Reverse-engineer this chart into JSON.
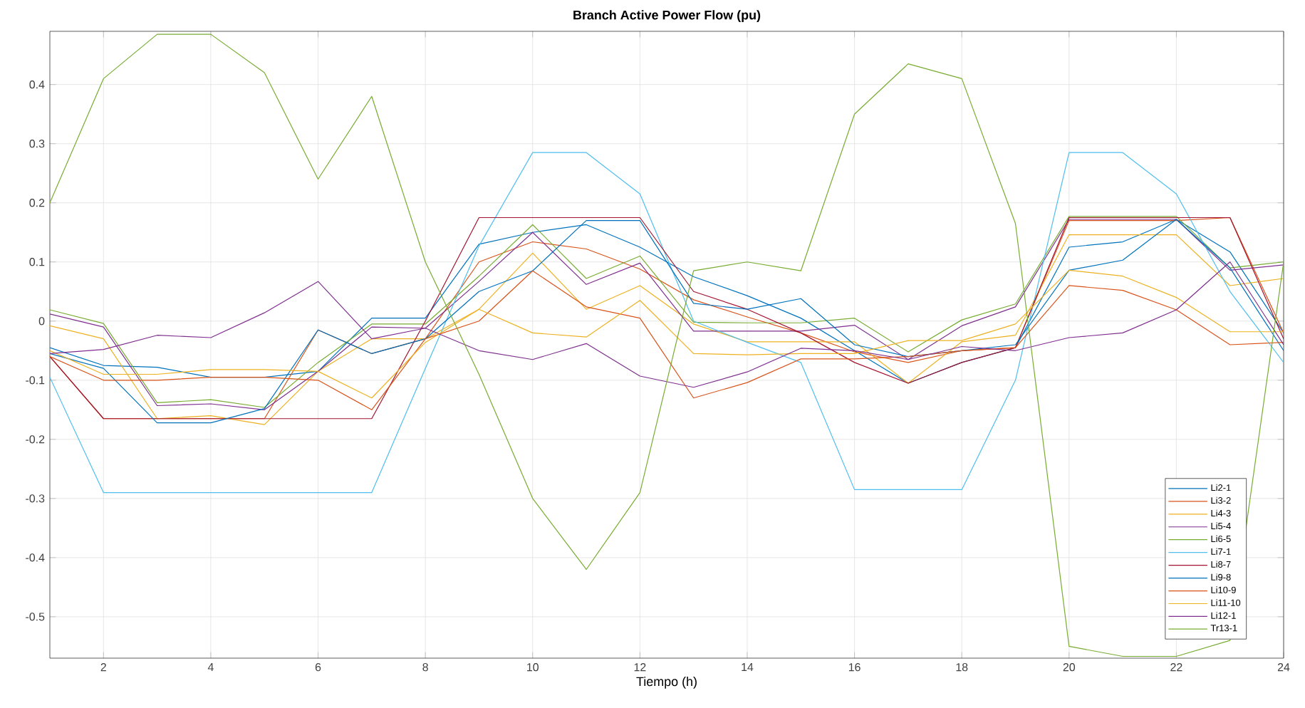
{
  "chart_data": {
    "type": "line",
    "title": "Branch Active Power Flow (pu)",
    "xlabel": "Tiempo (h)",
    "x": [
      1,
      2,
      3,
      4,
      5,
      6,
      7,
      8,
      9,
      10,
      11,
      12,
      13,
      14,
      15,
      16,
      17,
      18,
      19,
      20,
      21,
      22,
      23,
      24
    ],
    "xlim": [
      1,
      24
    ],
    "xticks": [
      2,
      4,
      6,
      8,
      10,
      12,
      14,
      16,
      18,
      20,
      22,
      24
    ],
    "ylim": [
      -0.57,
      0.49
    ],
    "yticks": [
      -0.5,
      -0.4,
      -0.3,
      -0.2,
      -0.1,
      0,
      0.1,
      0.2,
      0.3,
      0.4
    ],
    "grid": true,
    "legend": "bottom right",
    "marker": "none",
    "line_style": "solid",
    "series": [
      {
        "name": "Li2-1",
        "color": "#0072bd",
        "values": [
          -0.045,
          -0.075,
          -0.078,
          -0.095,
          -0.095,
          -0.085,
          0.005,
          0.005,
          0.13,
          0.15,
          0.163,
          0.125,
          0.075,
          0.043,
          0.005,
          -0.05,
          -0.105,
          -0.07,
          -0.045,
          0.125,
          0.134,
          0.172,
          0.117,
          -0.02
        ]
      },
      {
        "name": "Li3-2",
        "color": "#d95319",
        "values": [
          -0.06,
          -0.165,
          -0.165,
          -0.165,
          -0.165,
          -0.015,
          -0.055,
          -0.03,
          0.1,
          0.134,
          0.122,
          0.088,
          0.036,
          0.007,
          -0.02,
          -0.052,
          -0.07,
          -0.05,
          -0.045,
          0.17,
          0.17,
          0.17,
          0.175,
          -0.02
        ]
      },
      {
        "name": "Li4-3",
        "color": "#edb120",
        "values": [
          -0.008,
          -0.03,
          -0.165,
          -0.16,
          -0.175,
          -0.085,
          -0.03,
          -0.03,
          0.02,
          0.115,
          0.02,
          0.06,
          -0.005,
          -0.035,
          -0.035,
          -0.035,
          -0.105,
          -0.035,
          -0.024,
          0.146,
          0.146,
          0.146,
          0.06,
          0.072
        ]
      },
      {
        "name": "Li5-4",
        "color": "#7e2f8e",
        "values": [
          0.012,
          -0.01,
          -0.143,
          -0.14,
          -0.15,
          -0.085,
          -0.01,
          -0.012,
          0.067,
          0.15,
          0.062,
          0.098,
          -0.017,
          -0.017,
          -0.017,
          -0.007,
          -0.065,
          -0.008,
          0.024,
          0.172,
          0.172,
          0.172,
          0.086,
          0.095
        ]
      },
      {
        "name": "Li6-5",
        "color": "#77ac30",
        "values": [
          0.019,
          -0.004,
          -0.138,
          -0.133,
          -0.146,
          -0.07,
          -0.005,
          -0.005,
          0.076,
          0.163,
          0.072,
          0.11,
          -0.002,
          -0.003,
          -0.003,
          0.005,
          -0.052,
          0.002,
          0.029,
          0.177,
          0.177,
          0.177,
          0.09,
          0.1
        ]
      },
      {
        "name": "Li7-1",
        "color": "#4dbeee",
        "values": [
          -0.095,
          -0.29,
          -0.29,
          -0.29,
          -0.29,
          -0.29,
          -0.29,
          -0.08,
          0.127,
          0.285,
          0.285,
          0.215,
          0.0,
          -0.036,
          -0.07,
          -0.285,
          -0.285,
          -0.285,
          -0.1,
          0.285,
          0.285,
          0.215,
          0.05,
          -0.07
        ]
      },
      {
        "name": "Li8-7",
        "color": "#a2142f",
        "values": [
          -0.06,
          -0.165,
          -0.165,
          -0.165,
          -0.165,
          -0.165,
          -0.165,
          0.0,
          0.175,
          0.175,
          0.175,
          0.175,
          0.05,
          0.02,
          -0.02,
          -0.07,
          -0.105,
          -0.07,
          -0.045,
          0.175,
          0.175,
          0.175,
          0.175,
          -0.03
        ]
      },
      {
        "name": "Li9-8",
        "color": "#0072bd",
        "values": [
          -0.055,
          -0.08,
          -0.172,
          -0.172,
          -0.148,
          -0.015,
          -0.055,
          -0.03,
          0.05,
          0.085,
          0.17,
          0.17,
          0.03,
          0.02,
          0.038,
          -0.04,
          -0.06,
          -0.05,
          -0.04,
          0.086,
          0.103,
          0.172,
          0.09,
          -0.05
        ]
      },
      {
        "name": "Li10-9",
        "color": "#d95319",
        "values": [
          -0.06,
          -0.1,
          -0.1,
          -0.095,
          -0.095,
          -0.1,
          -0.15,
          -0.03,
          0.0,
          0.085,
          0.024,
          0.005,
          -0.13,
          -0.104,
          -0.064,
          -0.064,
          -0.06,
          -0.05,
          -0.045,
          0.06,
          0.052,
          0.019,
          -0.04,
          -0.036
        ]
      },
      {
        "name": "Li11-10",
        "color": "#edb120",
        "values": [
          -0.05,
          -0.09,
          -0.09,
          -0.082,
          -0.082,
          -0.085,
          -0.13,
          -0.036,
          0.02,
          -0.02,
          -0.027,
          0.035,
          -0.055,
          -0.057,
          -0.055,
          -0.055,
          -0.033,
          -0.033,
          -0.005,
          0.086,
          0.076,
          0.04,
          -0.018,
          -0.018
        ]
      },
      {
        "name": "Li12-1",
        "color": "#7e2f8e",
        "values": [
          -0.055,
          -0.048,
          -0.024,
          -0.028,
          0.014,
          0.067,
          -0.03,
          -0.012,
          -0.05,
          -0.065,
          -0.038,
          -0.093,
          -0.112,
          -0.086,
          -0.046,
          -0.05,
          -0.065,
          -0.043,
          -0.05,
          -0.028,
          -0.02,
          0.019,
          0.1,
          -0.04
        ]
      },
      {
        "name": "Tr13-1",
        "color": "#77ac30",
        "values": [
          0.2,
          0.41,
          0.485,
          0.485,
          0.42,
          0.24,
          0.38,
          0.1,
          -0.09,
          -0.3,
          -0.42,
          -0.29,
          0.085,
          0.1,
          0.085,
          0.35,
          0.435,
          0.41,
          0.165,
          -0.55,
          -0.567,
          -0.567,
          -0.54,
          0.1
        ]
      }
    ]
  }
}
